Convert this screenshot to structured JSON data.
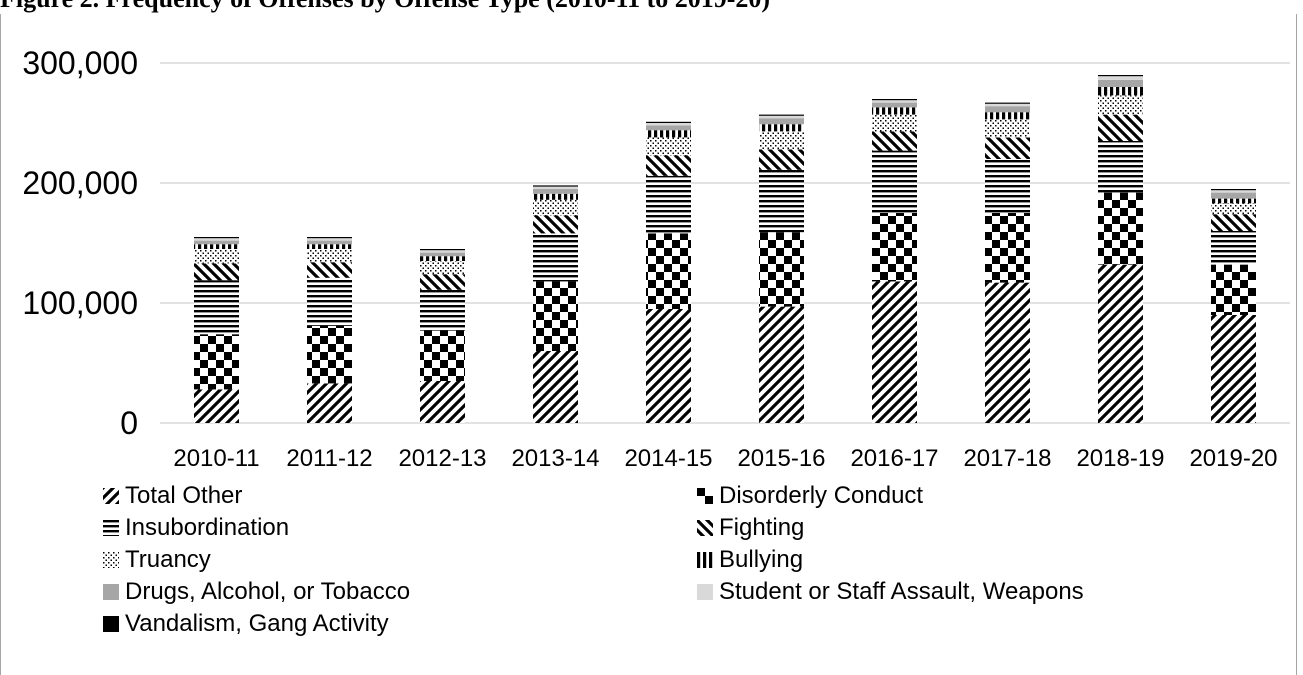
{
  "figure": {
    "caption": "Figure 2. Frequency of Offenses by Offense Type (2010-11 to 2019-20)"
  },
  "chart_data": {
    "type": "bar",
    "stacked": true,
    "title": "",
    "xlabel": "",
    "ylabel": "",
    "ylim": [
      0,
      300000
    ],
    "yticks": [
      0,
      100000,
      200000,
      300000
    ],
    "ytick_labels": [
      "0",
      "100,000",
      "200,000",
      "300,000"
    ],
    "grid": true,
    "legend_position": "bottom",
    "categories": [
      "2010-11",
      "2011-12",
      "2012-13",
      "2013-14",
      "2014-15",
      "2015-16",
      "2016-17",
      "2017-18",
      "2018-19",
      "2019-20"
    ],
    "series": [
      {
        "name": "Total Other",
        "pattern": "forward-diagonal",
        "values": [
          28000,
          33000,
          35000,
          60000,
          95000,
          97000,
          118000,
          117000,
          132000,
          90000
        ]
      },
      {
        "name": "Disorderly Conduct",
        "pattern": "checkerboard",
        "values": [
          46000,
          48000,
          42000,
          58000,
          63000,
          62000,
          57000,
          58000,
          60000,
          42000
        ]
      },
      {
        "name": "Insubordination",
        "pattern": "horizontal-lines",
        "values": [
          45000,
          40000,
          34000,
          40000,
          48000,
          52000,
          52000,
          45000,
          43000,
          28000
        ]
      },
      {
        "name": "Fighting",
        "pattern": "backward-diagonal",
        "values": [
          14000,
          13000,
          13000,
          15000,
          17000,
          17000,
          16000,
          18000,
          22000,
          14000
        ]
      },
      {
        "name": "Truancy",
        "pattern": "dots",
        "values": [
          12000,
          11000,
          11000,
          13000,
          15000,
          15000,
          14000,
          15000,
          16000,
          9000
        ]
      },
      {
        "name": "Bullying",
        "pattern": "vertical-lines",
        "values": [
          4000,
          4000,
          4000,
          5000,
          6000,
          6000,
          6000,
          6000,
          7000,
          4000
        ]
      },
      {
        "name": "Drugs, Alcohol, or Tobacco",
        "color": "#a6a6a6",
        "values": [
          3000,
          3000,
          3000,
          4000,
          4000,
          5000,
          4000,
          5000,
          6000,
          5000
        ]
      },
      {
        "name": "Student or Staff Assault, Weapons",
        "color": "#d9d9d9",
        "values": [
          2000,
          2000,
          2000,
          2000,
          2000,
          2000,
          2000,
          2000,
          3000,
          2000
        ]
      },
      {
        "name": "Vandalism, Gang Activity",
        "color": "#000000",
        "values": [
          1000,
          1000,
          1000,
          1000,
          1000,
          1000,
          1000,
          1000,
          1000,
          1000
        ]
      }
    ]
  }
}
